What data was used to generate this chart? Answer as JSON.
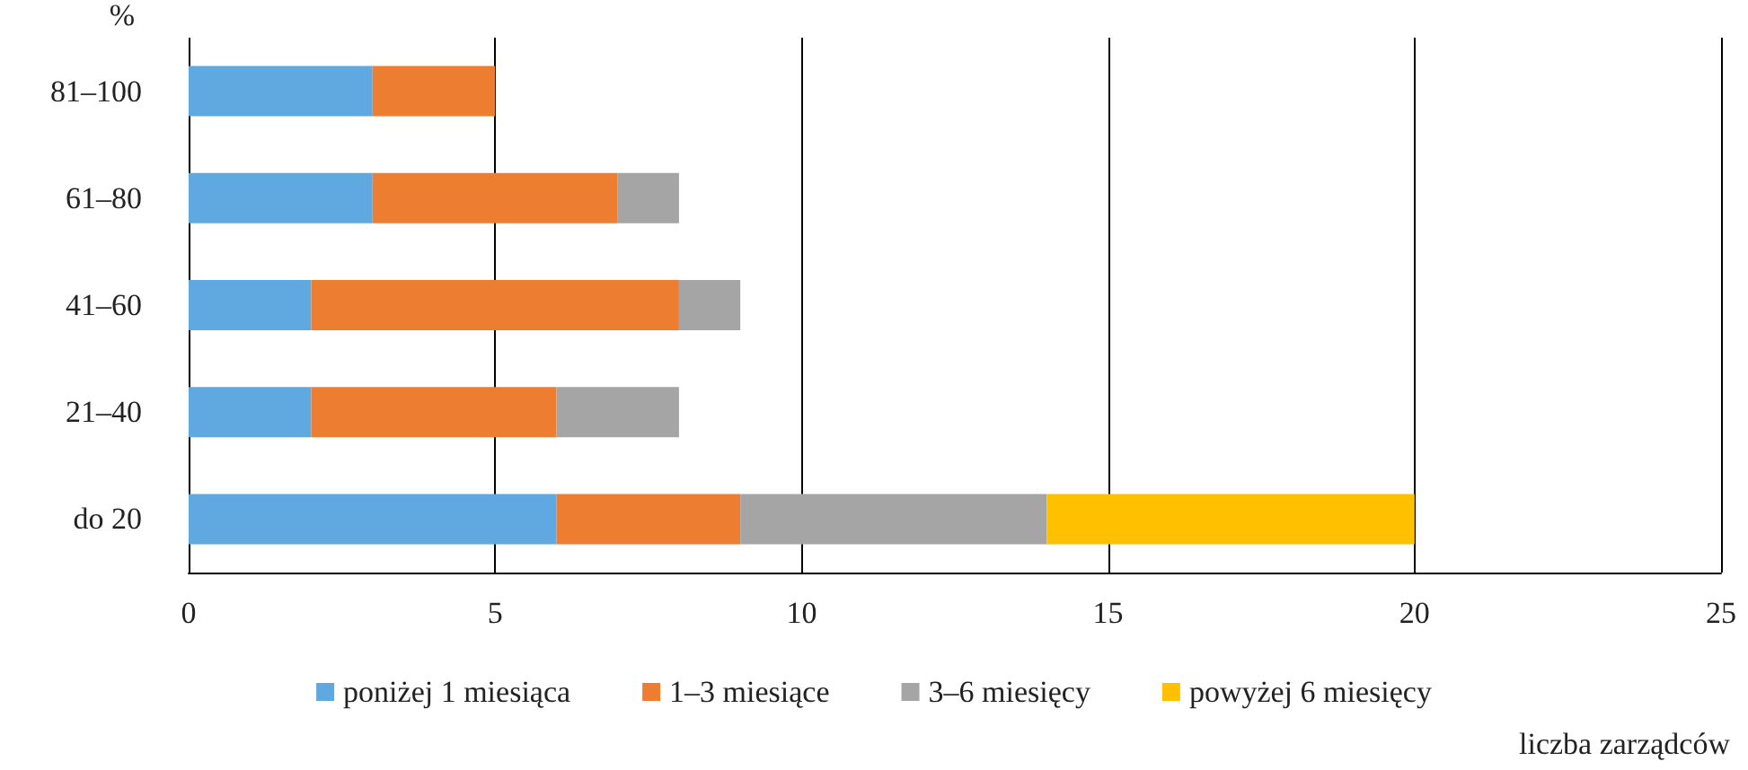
{
  "chart_data": {
    "type": "bar",
    "orientation": "horizontal",
    "stacked": true,
    "ylabel": "%",
    "xlabel": "liczba zarządców",
    "categories": [
      "81–100",
      "61–80",
      "41–60",
      "21–40",
      "do 20"
    ],
    "series": [
      {
        "name": "poniżej 1 miesiąca",
        "color": "#5fa8e0",
        "values": [
          3,
          3,
          2,
          2,
          6
        ]
      },
      {
        "name": "1–3 miesiące",
        "color": "#ed7d31",
        "values": [
          2,
          4,
          6,
          4,
          3
        ]
      },
      {
        "name": "3–6 miesięcy",
        "color": "#a5a5a5",
        "values": [
          0,
          1,
          1,
          2,
          5
        ]
      },
      {
        "name": "powyżej 6 miesięcy",
        "color": "#ffc000",
        "values": [
          0,
          0,
          0,
          0,
          6
        ]
      }
    ],
    "xlim": [
      0,
      25
    ],
    "xticks": [
      0,
      5,
      10,
      15,
      20,
      25
    ],
    "grid": "x",
    "legend": "bottom"
  }
}
